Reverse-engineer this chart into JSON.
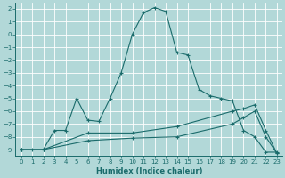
{
  "xlabel": "Humidex (Indice chaleur)",
  "background_color": "#b2d8d8",
  "grid_color": "#ffffff",
  "line_color": "#1a6b6b",
  "xlim": [
    -0.5,
    23.5
  ],
  "ylim": [
    -9.5,
    2.5
  ],
  "yticks": [
    2,
    1,
    0,
    -1,
    -2,
    -3,
    -4,
    -5,
    -6,
    -7,
    -8,
    -9
  ],
  "xticks": [
    0,
    1,
    2,
    3,
    4,
    5,
    6,
    7,
    8,
    9,
    10,
    11,
    12,
    13,
    14,
    15,
    16,
    17,
    18,
    19,
    20,
    21,
    22,
    23
  ],
  "line1_x": [
    0,
    1,
    2,
    3,
    4,
    5,
    6,
    7,
    8,
    9,
    10,
    11,
    12,
    13,
    14,
    15,
    16,
    17,
    18,
    19,
    20,
    21,
    22,
    23
  ],
  "line1_y": [
    -9,
    -9,
    -9,
    -7.5,
    -7.5,
    -5.0,
    -6.7,
    -6.8,
    -5.0,
    -3.0,
    0.0,
    1.7,
    2.1,
    1.8,
    -1.4,
    -1.6,
    -4.3,
    -4.8,
    -5.0,
    -5.2,
    -7.5,
    -8.0,
    -9.2,
    -9.2
  ],
  "line2_x": [
    0,
    2,
    6,
    10,
    14,
    19,
    20,
    21,
    22,
    23
  ],
  "line2_y": [
    -9,
    -9,
    -7.7,
    -7.7,
    -7.2,
    -6.0,
    -5.8,
    -5.5,
    -7.5,
    -9.3
  ],
  "line3_x": [
    0,
    2,
    6,
    10,
    14,
    19,
    20,
    21,
    22,
    23
  ],
  "line3_y": [
    -9,
    -9,
    -8.3,
    -8.1,
    -8.0,
    -7.0,
    -6.5,
    -6.0,
    -8.0,
    -9.3
  ],
  "line4_x": [
    0,
    23
  ],
  "line4_y": [
    -9,
    -9.3
  ]
}
